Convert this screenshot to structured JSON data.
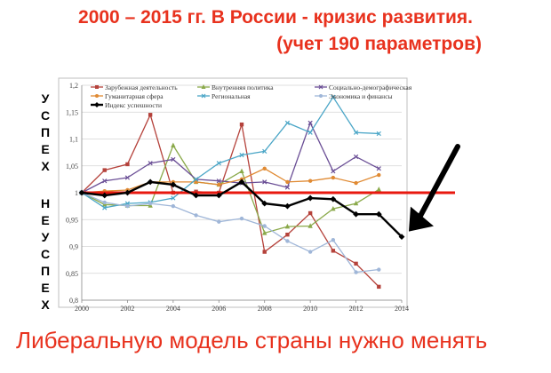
{
  "header": {
    "title_line1": "2000 – 2015 гг.  В России - кризис развития.",
    "title_line2": "(учет 190 параметров)"
  },
  "side": {
    "success_letters": [
      "У",
      "С",
      "П",
      "Е",
      "Х"
    ],
    "failure_letters": [
      "Н",
      "Е",
      "У",
      "С",
      "П",
      "Е",
      "Х"
    ]
  },
  "footer": {
    "text": "Либеральную модель страны нужно менять"
  },
  "colors": {
    "title": "#e8321e",
    "baseline": "#e8180f",
    "arrow": "#000000"
  },
  "chart_data": {
    "type": "line",
    "xlim": [
      2000,
      2014
    ],
    "ylim": [
      0.8,
      1.2
    ],
    "x_ticks": [
      "2000",
      "2002",
      "2004",
      "2006",
      "2008",
      "2010",
      "2012",
      "2014"
    ],
    "y_ticks": [
      "0,8",
      "0,85",
      "0,9",
      "0,95",
      "1",
      "1,05",
      "1,1",
      "1,15",
      "1,2"
    ],
    "baseline": 1,
    "grid": true,
    "legend_position": "top",
    "series": [
      {
        "name": "Зарубежная деятельность",
        "color": "#b5423b",
        "marker": "square",
        "x": [
          2000,
          2001,
          2002,
          2003,
          2004,
          2005,
          2006,
          2007,
          2008,
          2009,
          2010,
          2011,
          2012,
          2013
        ],
        "y": [
          1.0,
          1.042,
          1.053,
          1.145,
          1.0,
          1.002,
          1.0,
          1.127,
          0.89,
          0.922,
          0.962,
          0.892,
          0.868,
          0.825
        ]
      },
      {
        "name": "Внутренняя политика",
        "color": "#8aa94a",
        "marker": "triangle",
        "x": [
          2000,
          2001,
          2002,
          2003,
          2004,
          2005,
          2006,
          2007,
          2008,
          2009,
          2010,
          2011,
          2012,
          2013
        ],
        "y": [
          1.0,
          0.978,
          0.976,
          0.976,
          1.088,
          1.02,
          1.015,
          1.04,
          0.925,
          0.937,
          0.938,
          0.97,
          0.98,
          1.006
        ]
      },
      {
        "name": "Социально-демографическая",
        "color": "#6b4f96",
        "marker": "x",
        "x": [
          2000,
          2001,
          2002,
          2003,
          2004,
          2005,
          2006,
          2007,
          2008,
          2009,
          2010,
          2011,
          2012,
          2013
        ],
        "y": [
          1.0,
          1.022,
          1.028,
          1.055,
          1.062,
          1.025,
          1.022,
          1.018,
          1.02,
          1.01,
          1.13,
          1.04,
          1.067,
          1.045
        ]
      },
      {
        "name": "Гуманитарная сфера",
        "color": "#e08a33",
        "marker": "circle",
        "x": [
          2000,
          2001,
          2002,
          2003,
          2004,
          2005,
          2006,
          2007,
          2008,
          2009,
          2010,
          2011,
          2012,
          2013
        ],
        "y": [
          1.0,
          1.003,
          1.005,
          1.02,
          1.02,
          1.02,
          1.015,
          1.025,
          1.045,
          1.02,
          1.022,
          1.028,
          1.018,
          1.033
        ]
      },
      {
        "name": "Региональная",
        "color": "#4ba6c7",
        "marker": "x",
        "x": [
          2000,
          2001,
          2002,
          2003,
          2004,
          2005,
          2006,
          2007,
          2008,
          2009,
          2010,
          2011,
          2012,
          2013
        ],
        "y": [
          1.0,
          0.972,
          0.98,
          0.982,
          0.99,
          1.025,
          1.055,
          1.07,
          1.077,
          1.13,
          1.112,
          1.178,
          1.112,
          1.11
        ]
      },
      {
        "name": "Экономика и финансы",
        "color": "#9fb6d8",
        "marker": "circle",
        "x": [
          2000,
          2001,
          2002,
          2003,
          2004,
          2005,
          2006,
          2007,
          2008,
          2009,
          2010,
          2011,
          2012,
          2013
        ],
        "y": [
          1.0,
          0.982,
          0.975,
          0.98,
          0.975,
          0.958,
          0.946,
          0.952,
          0.938,
          0.91,
          0.89,
          0.912,
          0.852,
          0.857
        ]
      },
      {
        "name": "Индекс успешности",
        "color": "#000000",
        "marker": "diamond",
        "bold": true,
        "x": [
          2000,
          2001,
          2002,
          2003,
          2004,
          2005,
          2006,
          2007,
          2008,
          2009,
          2010,
          2011,
          2012,
          2013,
          2014
        ],
        "y": [
          1.0,
          0.995,
          1.0,
          1.02,
          1.015,
          0.995,
          0.995,
          1.02,
          0.98,
          0.975,
          0.99,
          0.988,
          0.96,
          0.96,
          0.918
        ]
      }
    ]
  }
}
